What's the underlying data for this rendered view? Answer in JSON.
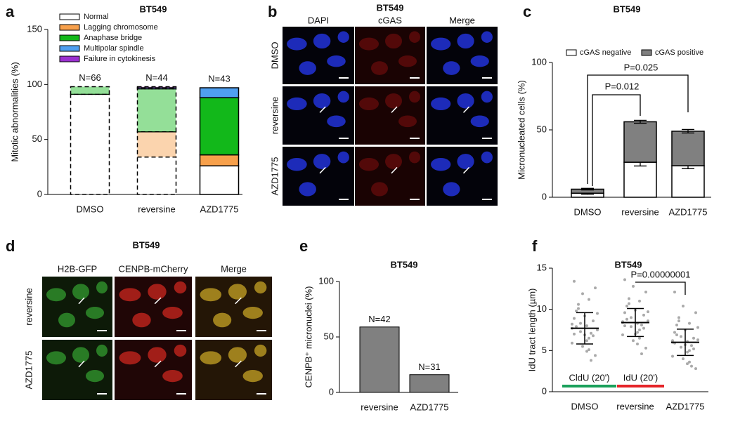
{
  "figure": {
    "panel_labels": [
      "a",
      "b",
      "c",
      "d",
      "e",
      "f"
    ],
    "images": [
      {
        "title": "BT549",
        "columns": [
          "DAPI",
          "cGAS",
          "Merge"
        ],
        "rows": [
          "DMSO",
          "reversine",
          "AZD1775"
        ]
      },
      {
        "title": "BT549",
        "columns": [
          "H2B-GFP",
          "CENPB-mCherry",
          "Merge"
        ],
        "rows": [
          "reversine",
          "AZD1775"
        ]
      }
    ]
  },
  "chart_data": [
    {
      "type": "stacked_bar",
      "title": "BT549",
      "ylabel": "Mitotic abnormalities (%)",
      "categories": [
        "DMSO",
        "reversine",
        "AZD1775"
      ],
      "category_styles": [
        "dashed",
        "dashed",
        "solid"
      ],
      "series": [
        {
          "name": "Normal",
          "color": "#ffffff",
          "values": [
            91,
            34,
            26
          ]
        },
        {
          "name": "Lagging chromosome",
          "color": "#f7a04b",
          "values": [
            0,
            23,
            10
          ]
        },
        {
          "name": "Anaphase bridge",
          "color": "#12b81a",
          "values": [
            7,
            39,
            52
          ]
        },
        {
          "name": "Multipolar spindle",
          "color": "#4f9ff0",
          "values": [
            0,
            1,
            9
          ]
        },
        {
          "name": "Failure in cytokinesis",
          "color": "#9a2fcf",
          "values": [
            0,
            1,
            0
          ]
        }
      ],
      "annotations": [
        "N=66",
        "N=44",
        "N=43"
      ],
      "ylim": [
        0,
        150
      ],
      "yticks": [
        0,
        50,
        100,
        150
      ],
      "legend": "top-left"
    },
    {
      "type": "stacked_bar",
      "title": "BT549",
      "ylabel": "Micronucleated cells (%)",
      "categories": [
        "DMSO",
        "reversine",
        "AZD1775"
      ],
      "category_styles": [
        "solid",
        "solid",
        "solid"
      ],
      "series": [
        {
          "name": "cGAS negative",
          "color": "#ffffff",
          "values": [
            3,
            26,
            23.4
          ],
          "errors": [
            0.8,
            2.8,
            2.2
          ]
        },
        {
          "name": "cGAS positive",
          "color": "#808080",
          "values": [
            3,
            30,
            25.6
          ],
          "errors": [
            0.6,
            1.1,
            1.3
          ]
        }
      ],
      "brackets": [
        "P=0.012",
        "P=0.025"
      ],
      "ylim": [
        0,
        100
      ],
      "yticks": [
        0,
        50,
        100
      ],
      "legend": "top"
    },
    {
      "type": "bar",
      "title": "BT549",
      "ylabel": "CENPB⁺ micronuclei (%)",
      "categories": [
        "reversine",
        "AZD1775"
      ],
      "values": [
        59,
        16
      ],
      "color": "#808080",
      "annotations": [
        "N=42",
        "N=31"
      ],
      "ylim": [
        0,
        100
      ],
      "yticks": [
        0,
        50,
        100
      ]
    },
    {
      "type": "dotplot",
      "title": "BT549",
      "ylabel": "IdU tract length (µm)",
      "categories": [
        "DMSO",
        "reversine",
        "AZD1775"
      ],
      "points": [
        [
          7.7,
          6.2,
          8.9,
          5.1,
          9.8,
          7.1,
          10.6,
          6.8,
          8.3,
          4.4,
          11.9,
          7.5,
          9.2,
          5.9,
          8.0,
          13.4,
          6.5,
          7.9,
          3.8,
          10.1,
          8.6,
          7.3,
          12.6,
          5.5,
          9.5,
          6.9,
          8.2,
          4.9,
          7.0,
          11.2
        ],
        [
          8.4,
          7.2,
          9.6,
          6.5,
          10.4,
          8.1,
          11.3,
          7.7,
          9.0,
          5.3,
          12.8,
          8.6,
          9.9,
          6.9,
          8.3,
          13.6,
          7.5,
          8.8,
          4.6,
          10.7,
          9.3,
          7.9,
          12.1,
          6.2,
          9.7,
          7.0,
          8.5,
          5.8,
          8.0,
          11.0
        ],
        [
          6.0,
          4.8,
          7.2,
          3.6,
          8.1,
          5.6,
          9.0,
          5.2,
          6.7,
          2.8,
          10.4,
          6.3,
          7.5,
          4.3,
          6.1,
          12.1,
          5.0,
          6.9,
          3.1,
          8.6,
          6.5,
          5.4,
          9.6,
          4.0,
          7.8,
          5.7,
          6.2,
          3.4,
          5.9,
          8.3
        ]
      ],
      "means": [
        7.7,
        8.4,
        6.0
      ],
      "sd": [
        1.9,
        1.7,
        1.6
      ],
      "brackets": [
        "P=0.00000001"
      ],
      "bars": [
        {
          "label": "CldU (20')",
          "color": "#1aa05a"
        },
        {
          "label": "IdU (20')",
          "color": "#e52428"
        }
      ],
      "ylim": [
        0,
        15
      ],
      "yticks": [
        0,
        5,
        10,
        15
      ]
    }
  ]
}
